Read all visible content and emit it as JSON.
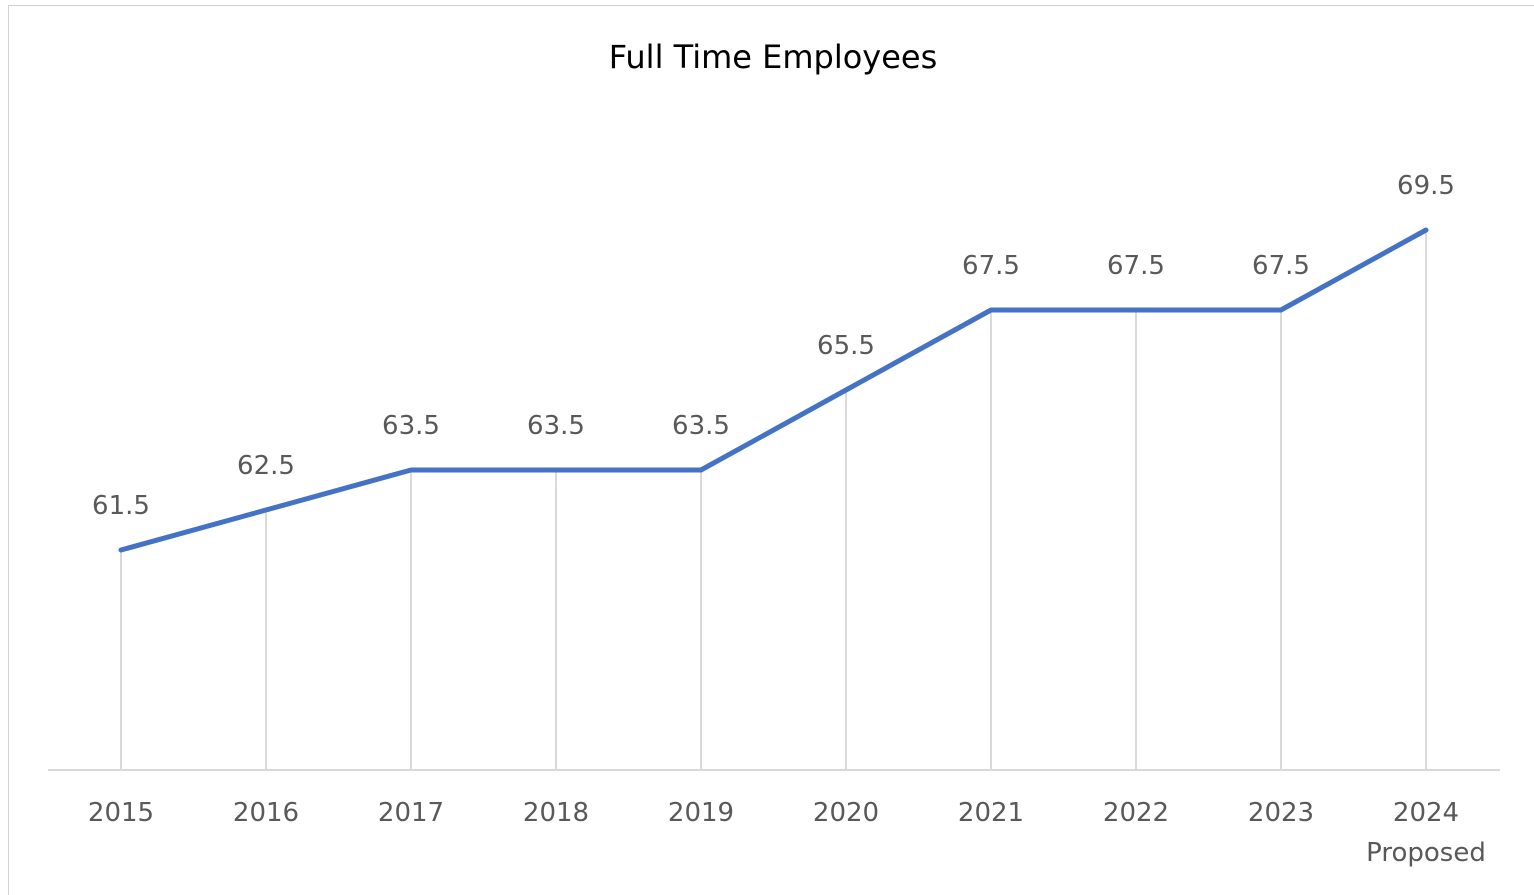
{
  "chart_data": {
    "type": "line",
    "title": "Full Time Employees",
    "categories": [
      "2015",
      "2016",
      "2017",
      "2018",
      "2019",
      "2020",
      "2021",
      "2022",
      "2023",
      "2024\nProposed"
    ],
    "values": [
      61.5,
      62.5,
      63.5,
      63.5,
      63.5,
      65.5,
      67.5,
      67.5,
      67.5,
      69.5
    ],
    "color": "#4472c4",
    "ylim": [
      56,
      72
    ],
    "drop_lines": true
  }
}
